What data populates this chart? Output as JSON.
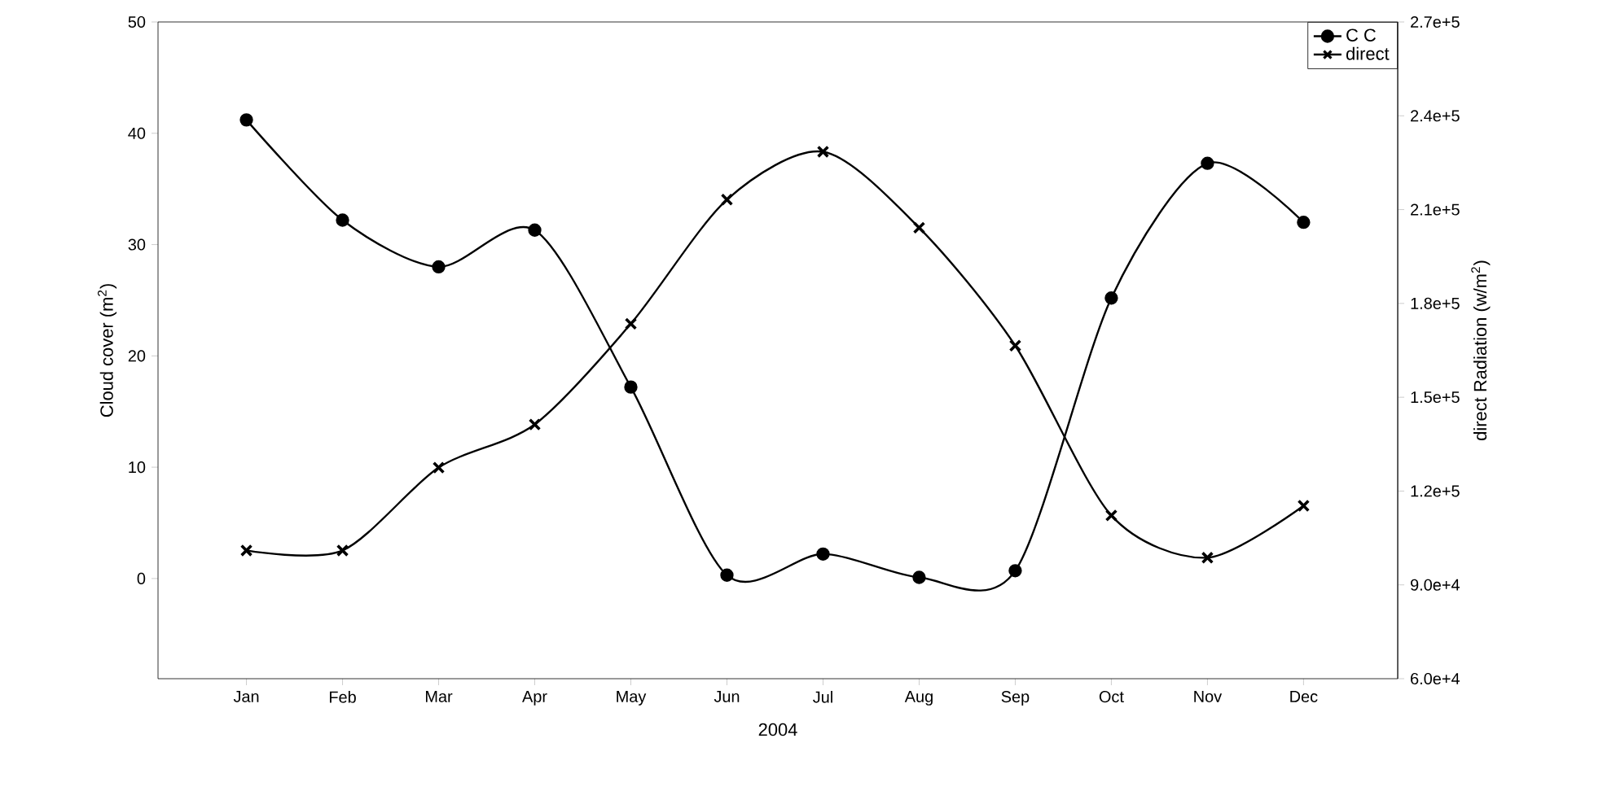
{
  "chart_data": {
    "type": "line",
    "xlabel": "2004",
    "ylabel": "Cloud cover (m$^{2}$)",
    "y2label": "direct Radiation (w/m$^{2}$)",
    "categories": [
      "Jan",
      "Feb",
      "Mar",
      "Apr",
      "May",
      "Jun",
      "Jul",
      "Aug",
      "Sep",
      "Oct",
      "Nov",
      "Dec"
    ],
    "ylim": [
      -9,
      50
    ],
    "yticks": [
      0,
      10,
      20,
      30,
      40,
      50
    ],
    "y2lim": [
      60000,
      270000
    ],
    "y2ticks": [
      {
        "value": 60000,
        "label": "6.0e+4"
      },
      {
        "value": 90000,
        "label": "9.0e+4"
      },
      {
        "value": 120000,
        "label": "1.2e+5"
      },
      {
        "value": 150000,
        "label": "1.5e+5"
      },
      {
        "value": 180000,
        "label": "1.8e+5"
      },
      {
        "value": 210000,
        "label": "2.1e+5"
      },
      {
        "value": 240000,
        "label": "2.4e+5"
      },
      {
        "value": 270000,
        "label": "2.7e+5"
      }
    ],
    "legend": "top right",
    "line_style": "solid",
    "grid": false,
    "series": [
      {
        "name": "C C",
        "color": "#000000",
        "marker": "circle",
        "values": [
          41.2,
          32.2,
          28.0,
          31.3,
          17.2,
          0.3,
          2.2,
          0.1,
          0.7,
          25.2,
          37.3,
          32.0
        ]
      },
      {
        "name": "direct",
        "color": "#000000",
        "marker": "cross",
        "axis": "y2",
        "values": [
          101000,
          101000,
          127500,
          141300,
          173500,
          213200,
          228500,
          204200,
          166500,
          112200,
          98700,
          115300
        ]
      }
    ]
  }
}
